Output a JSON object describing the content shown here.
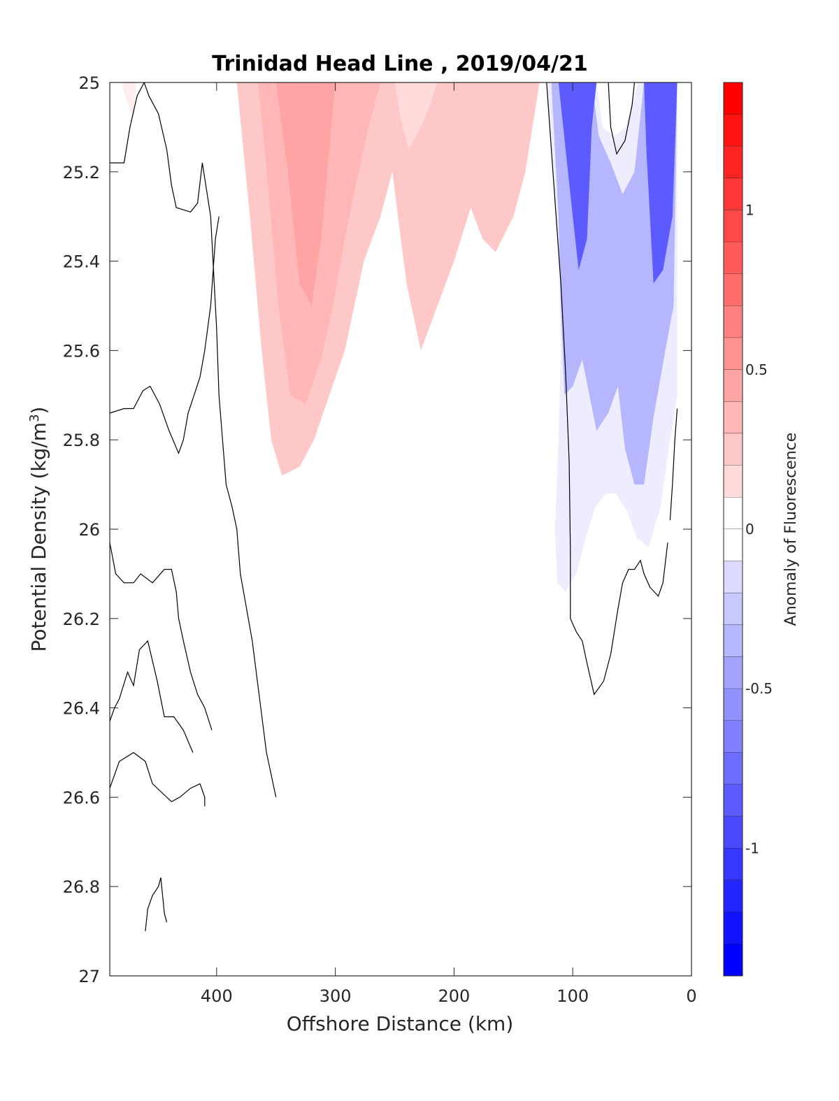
{
  "chart_data": {
    "type": "contourf",
    "title": "Trinidad Head Line , 2019/04/21",
    "xlabel": "Offshore Distance (km)",
    "ylabel_main": "Potential Density (kg/m",
    "ylabel_sup": "3",
    "ylabel_end": ")",
    "xlim": [
      490,
      0
    ],
    "x_reversed": true,
    "ylim": [
      25,
      27
    ],
    "y_reversed": true,
    "xticks": [
      400,
      300,
      200,
      100,
      0
    ],
    "xtick_labels": [
      "400",
      "300",
      "200",
      "100",
      "0"
    ],
    "yticks": [
      25,
      25.2,
      25.4,
      25.6,
      25.8,
      26,
      26.2,
      26.4,
      26.6,
      26.8,
      27
    ],
    "ytick_labels": [
      "25",
      "25.2",
      "25.4",
      "25.6",
      "25.8",
      "26",
      "26.2",
      "26.4",
      "26.6",
      "26.8",
      "27"
    ],
    "colorbar": {
      "label": "Anomaly of Fluorescence",
      "limits": [
        -1.4,
        1.4
      ],
      "level_step": 0.1,
      "ticks": [
        1,
        0.5,
        0,
        -0.5,
        -1
      ],
      "tick_labels": [
        "1",
        "0.5",
        "0",
        "-0.5",
        "-1"
      ],
      "positive_color": "#ff0000",
      "negative_color": "#0000ff",
      "neutral_color": "#ffffff"
    },
    "filled_regions": [
      {
        "name": "offshore-positive-core",
        "level": 0.3,
        "points": [
          [
            383,
            25
          ],
          [
            372,
            25.3
          ],
          [
            362,
            25.6
          ],
          [
            354,
            25.8
          ],
          [
            345,
            25.88
          ],
          [
            330,
            25.86
          ],
          [
            318,
            25.8
          ],
          [
            305,
            25.7
          ],
          [
            292,
            25.6
          ],
          [
            276,
            25.4
          ],
          [
            262,
            25.3
          ],
          [
            252,
            25.2
          ],
          [
            240,
            25.45
          ],
          [
            228,
            25.6
          ],
          [
            214,
            25.5
          ],
          [
            200,
            25.4
          ],
          [
            186,
            25.28
          ],
          [
            176,
            25.35
          ],
          [
            165,
            25.38
          ],
          [
            150,
            25.3
          ],
          [
            140,
            25.2
          ],
          [
            128,
            25
          ],
          [
            200,
            25
          ],
          [
            300,
            25
          ]
        ]
      },
      {
        "name": "offshore-positive-mid",
        "level": 0.4,
        "points": [
          [
            365,
            25
          ],
          [
            356,
            25.25
          ],
          [
            348,
            25.5
          ],
          [
            338,
            25.7
          ],
          [
            325,
            25.72
          ],
          [
            312,
            25.62
          ],
          [
            302,
            25.5
          ],
          [
            292,
            25.35
          ],
          [
            282,
            25.22
          ],
          [
            272,
            25.1
          ],
          [
            262,
            25
          ],
          [
            300,
            25
          ]
        ]
      },
      {
        "name": "offshore-positive-peak",
        "level": 0.5,
        "points": [
          [
            350,
            25
          ],
          [
            340,
            25.2
          ],
          [
            330,
            25.45
          ],
          [
            320,
            25.5
          ],
          [
            312,
            25.35
          ],
          [
            305,
            25.15
          ],
          [
            300,
            25
          ],
          [
            320,
            25
          ]
        ]
      },
      {
        "name": "secondary-positive-patch",
        "level": 0.2,
        "points": [
          [
            250,
            25
          ],
          [
            245,
            25.08
          ],
          [
            238,
            25.15
          ],
          [
            228,
            25.1
          ],
          [
            220,
            25.05
          ],
          [
            214,
            25
          ],
          [
            232,
            25
          ]
        ]
      },
      {
        "name": "far-west-positive-patch",
        "level": 0.1,
        "points": [
          [
            480,
            25
          ],
          [
            476,
            25.04
          ],
          [
            470,
            25.08
          ],
          [
            468,
            25
          ],
          [
            472,
            25
          ]
        ]
      },
      {
        "name": "coastal-negative-outer",
        "level": -0.1,
        "points": [
          [
            122,
            25
          ],
          [
            116,
            25.2
          ],
          [
            112,
            25.4
          ],
          [
            110,
            25.6
          ],
          [
            112,
            25.8
          ],
          [
            115,
            26
          ],
          [
            113,
            26.12
          ],
          [
            106,
            26.14
          ],
          [
            97,
            26.1
          ],
          [
            89,
            26.02
          ],
          [
            81,
            25.95
          ],
          [
            72,
            25.92
          ],
          [
            64,
            25.92
          ],
          [
            54,
            25.96
          ],
          [
            46,
            26.02
          ],
          [
            36,
            26.04
          ],
          [
            26,
            25.95
          ],
          [
            18,
            25.8
          ],
          [
            12,
            25.7
          ],
          [
            12,
            25
          ],
          [
            45,
            25
          ],
          [
            55,
            25.1
          ],
          [
            65,
            25.12
          ],
          [
            75,
            25.1
          ],
          [
            80,
            25
          ]
        ]
      },
      {
        "name": "coastal-negative-mid",
        "level": -0.4,
        "points": [
          [
            118,
            25
          ],
          [
            112,
            25.3
          ],
          [
            110,
            25.5
          ],
          [
            107,
            25.7
          ],
          [
            100,
            25.68
          ],
          [
            92,
            25.62
          ],
          [
            86,
            25.7
          ],
          [
            80,
            25.78
          ],
          [
            70,
            25.74
          ],
          [
            62,
            25.68
          ],
          [
            56,
            25.82
          ],
          [
            48,
            25.9
          ],
          [
            40,
            25.9
          ],
          [
            32,
            25.75
          ],
          [
            22,
            25.6
          ],
          [
            15,
            25.5
          ],
          [
            12,
            25
          ],
          [
            40,
            25
          ],
          [
            48,
            25.2
          ],
          [
            58,
            25.25
          ],
          [
            68,
            25.18
          ],
          [
            78,
            25.12
          ],
          [
            84,
            25
          ]
        ]
      },
      {
        "name": "inshore-negative-core-a",
        "level": -0.9,
        "points": [
          [
            112,
            25
          ],
          [
            106,
            25.15
          ],
          [
            100,
            25.3
          ],
          [
            95,
            25.42
          ],
          [
            88,
            25.35
          ],
          [
            84,
            25.1
          ],
          [
            80,
            25
          ],
          [
            96,
            25
          ]
        ]
      },
      {
        "name": "inshore-negative-core-b",
        "level": -0.9,
        "points": [
          [
            40,
            25
          ],
          [
            38,
            25.15
          ],
          [
            35,
            25.3
          ],
          [
            32,
            25.45
          ],
          [
            24,
            25.42
          ],
          [
            16,
            25.3
          ],
          [
            12,
            25
          ],
          [
            26,
            25
          ]
        ]
      }
    ],
    "zero_contours": [
      {
        "name": "western-zero-contour-a",
        "points": [
          [
            490,
            25.18
          ],
          [
            478,
            25.18
          ],
          [
            473,
            25.1
          ],
          [
            467,
            25.03
          ],
          [
            461,
            25
          ],
          [
            457,
            25.03
          ],
          [
            449,
            25.07
          ],
          [
            442,
            25.15
          ],
          [
            438,
            25.23
          ],
          [
            434,
            25.28
          ],
          [
            422,
            25.29
          ],
          [
            416,
            25.27
          ],
          [
            412,
            25.18
          ],
          [
            405,
            25.3
          ],
          [
            400,
            25.55
          ],
          [
            398,
            25.7
          ],
          [
            395,
            25.8
          ],
          [
            392,
            25.9
          ],
          [
            387,
            25.95
          ],
          [
            383,
            26.0
          ],
          [
            380,
            26.1
          ],
          [
            370,
            26.25
          ],
          [
            358,
            26.5
          ],
          [
            350,
            26.6
          ]
        ]
      },
      {
        "name": "western-zero-contour-b",
        "points": [
          [
            490,
            25.74
          ],
          [
            478,
            25.73
          ],
          [
            470,
            25.73
          ],
          [
            462,
            25.69
          ],
          [
            456,
            25.68
          ],
          [
            448,
            25.72
          ],
          [
            440,
            25.78
          ],
          [
            432,
            25.83
          ],
          [
            428,
            25.8
          ],
          [
            424,
            25.74
          ],
          [
            414,
            25.66
          ],
          [
            410,
            25.6
          ],
          [
            405,
            25.5
          ],
          [
            401,
            25.35
          ],
          [
            398,
            25.3
          ]
        ]
      },
      {
        "name": "coastal-zero-contour",
        "points": [
          [
            122,
            25
          ],
          [
            118,
            25.15
          ],
          [
            114,
            25.3
          ],
          [
            110,
            25.45
          ],
          [
            106,
            25.65
          ],
          [
            103,
            25.85
          ],
          [
            102,
            26.05
          ],
          [
            102,
            26.2
          ],
          [
            97,
            26.23
          ],
          [
            92,
            26.25
          ],
          [
            88,
            26.3
          ],
          [
            82,
            26.37
          ],
          [
            74,
            26.34
          ],
          [
            68,
            26.28
          ],
          [
            62,
            26.18
          ],
          [
            58,
            26.12
          ],
          [
            53,
            26.09
          ],
          [
            48,
            26.09
          ],
          [
            43,
            26.07
          ],
          [
            40,
            26.1
          ],
          [
            35,
            26.13
          ],
          [
            28,
            26.15
          ],
          [
            24,
            26.12
          ],
          [
            20,
            26.03
          ]
        ]
      },
      {
        "name": "inshore-zero-contour-right",
        "points": [
          [
            12,
            25.73
          ],
          [
            14,
            25.8
          ],
          [
            16,
            25.9
          ],
          [
            18,
            25.98
          ]
        ]
      },
      {
        "name": "western-zero-contour-c",
        "points": [
          [
            490,
            26.03
          ],
          [
            485,
            26.1
          ],
          [
            478,
            26.12
          ],
          [
            470,
            26.12
          ],
          [
            464,
            26.1
          ],
          [
            454,
            26.12
          ],
          [
            444,
            26.09
          ],
          [
            438,
            26.09
          ],
          [
            434,
            26.14
          ],
          [
            432,
            26.2
          ],
          [
            428,
            26.25
          ],
          [
            422,
            26.32
          ],
          [
            416,
            26.37
          ],
          [
            410,
            26.4
          ],
          [
            404,
            26.45
          ]
        ]
      },
      {
        "name": "western-zero-contour-d",
        "points": [
          [
            490,
            26.58
          ],
          [
            482,
            26.52
          ],
          [
            470,
            26.5
          ],
          [
            460,
            26.52
          ],
          [
            454,
            26.57
          ],
          [
            446,
            26.59
          ],
          [
            438,
            26.61
          ],
          [
            431,
            26.6
          ],
          [
            422,
            26.58
          ],
          [
            414,
            26.57
          ],
          [
            410,
            26.6
          ],
          [
            410,
            26.62
          ]
        ]
      },
      {
        "name": "western-zero-contour-e",
        "points": [
          [
            490,
            26.43
          ],
          [
            486,
            26.4
          ],
          [
            482,
            26.38
          ],
          [
            475,
            26.32
          ],
          [
            470,
            26.35
          ],
          [
            465,
            26.27
          ],
          [
            458,
            26.25
          ],
          [
            450,
            26.34
          ],
          [
            444,
            26.42
          ],
          [
            436,
            26.42
          ],
          [
            428,
            26.45
          ],
          [
            420,
            26.5
          ]
        ]
      },
      {
        "name": "western-zero-contour-f",
        "points": [
          [
            460,
            26.9
          ],
          [
            458,
            26.85
          ],
          [
            454,
            26.82
          ],
          [
            449,
            26.8
          ],
          [
            447,
            26.78
          ],
          [
            444,
            26.86
          ],
          [
            442,
            26.88
          ]
        ]
      },
      {
        "name": "inshore-zero-contour-notch",
        "points": [
          [
            70,
            25
          ],
          [
            68,
            25.1
          ],
          [
            63,
            25.16
          ],
          [
            56,
            25.13
          ],
          [
            50,
            25.05
          ],
          [
            48,
            25
          ]
        ]
      }
    ]
  }
}
